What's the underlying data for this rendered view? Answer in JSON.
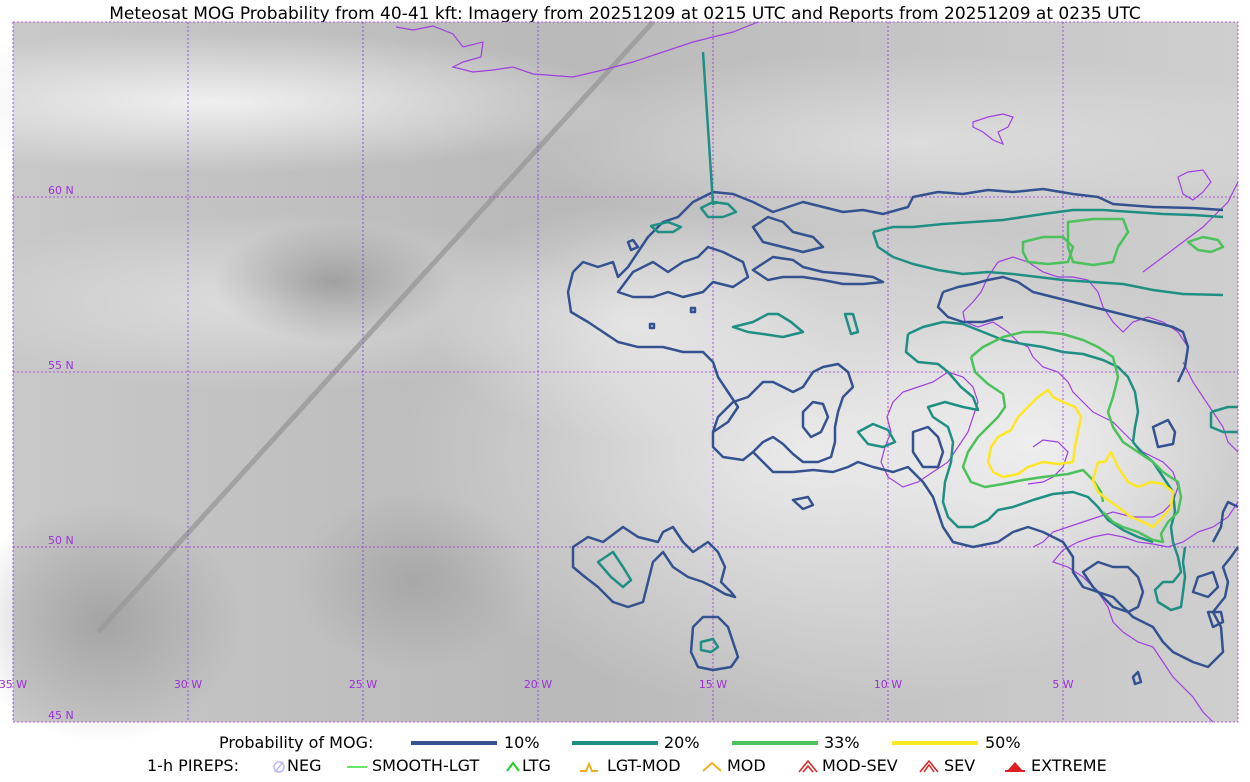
{
  "title": "Meteosat MOG Probability from 40-41 kft: Imagery from 20251209 at 0215 UTC and Reports from 20251209 at 0235 UTC",
  "map": {
    "background": "grayscale satellite imagery",
    "grid_color": "#9b30d9",
    "coastline_color": "#a040e0",
    "lat_labels": [
      "60 N",
      "55 N",
      "50 N",
      "45 N"
    ],
    "lon_labels": [
      "35 W",
      "30 W",
      "25 W",
      "20 W",
      "15 W",
      "10 W",
      "5 W"
    ]
  },
  "legend": {
    "probability_label": "Probability of MOG:",
    "levels": [
      {
        "label": "10%",
        "color": "#34528f"
      },
      {
        "label": "20%",
        "color": "#1f8f84"
      },
      {
        "label": "33%",
        "color": "#4cc15c"
      },
      {
        "label": "50%",
        "color": "#fde725"
      }
    ],
    "pireps_label": "1-h PIREPS:",
    "pireps": [
      {
        "label": "NEG",
        "icon": "neg-icon",
        "color": "#b9b9f5"
      },
      {
        "label": "SMOOTH-LGT",
        "icon": "smooth-lgt-icon",
        "color": "#33dd33"
      },
      {
        "label": "LTG",
        "icon": "ltg-icon",
        "color": "#22cc22"
      },
      {
        "label": "LGT-MOD",
        "icon": "lgt-mod-icon",
        "color": "#f0b020"
      },
      {
        "label": "MOD",
        "icon": "mod-icon",
        "color": "#f0b020"
      },
      {
        "label": "MOD-SEV",
        "icon": "mod-sev-icon",
        "color": "#e02020"
      },
      {
        "label": "SEV",
        "icon": "sev-icon",
        "color": "#e02020"
      },
      {
        "label": "EXTREME",
        "icon": "extreme-icon",
        "color": "#e02020"
      }
    ]
  }
}
